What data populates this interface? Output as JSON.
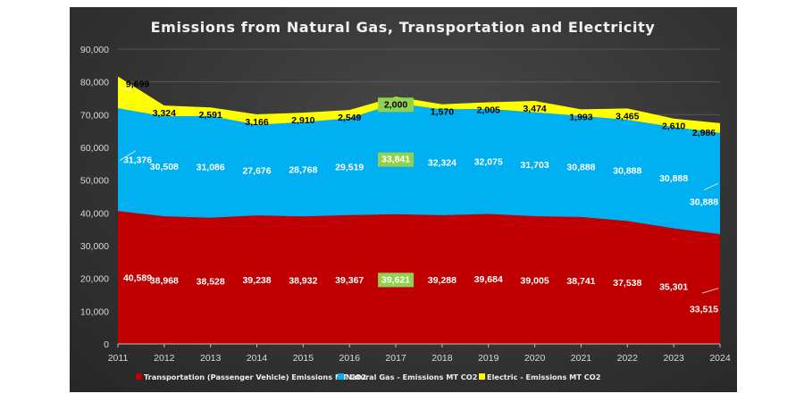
{
  "chart_data": {
    "type": "area",
    "stacked": true,
    "title": "Emissions from Natural Gas, Transportation and Electricity",
    "xlabel": "",
    "ylabel": "",
    "categories": [
      "2011",
      "2012",
      "2013",
      "2014",
      "2015",
      "2016",
      "2017",
      "2018",
      "2019",
      "2020",
      "2021",
      "2022",
      "2023",
      "2024"
    ],
    "ylim": [
      0,
      90000
    ],
    "yticks": [
      0,
      10000,
      20000,
      30000,
      40000,
      50000,
      60000,
      70000,
      80000,
      90000
    ],
    "ytick_labels": [
      "0",
      "10,000",
      "20,000",
      "30,000",
      "40,000",
      "50,000",
      "60,000",
      "70,000",
      "80,000",
      "90,000"
    ],
    "grid": true,
    "legend_position": "bottom",
    "series": [
      {
        "name": "Transportation (Passenger Vehicle) Emissions MT CO2",
        "color": "#C00000",
        "label_color": "#ffffff",
        "values": [
          40589,
          38968,
          38528,
          39238,
          38932,
          39367,
          39621,
          39288,
          39684,
          39005,
          38741,
          37538,
          35301,
          33515
        ],
        "labels": [
          "40,589",
          "38,968",
          "38,528",
          "39,238",
          "38,932",
          "39,367",
          "39,621",
          "39,288",
          "39,684",
          "39,005",
          "38,741",
          "37,538",
          "35,301",
          "33,515"
        ]
      },
      {
        "name": "Natural Gas - Emissions MT CO2",
        "color": "#00B0F0",
        "label_color": "#ffffff",
        "values": [
          31376,
          30508,
          31086,
          27676,
          28768,
          29519,
          33841,
          32324,
          32075,
          31703,
          30888,
          30888,
          30888,
          30888
        ],
        "labels": [
          "31,376",
          "30,508",
          "31,086",
          "27,676",
          "28,768",
          "29,519",
          "33,841",
          "32,324",
          "32,075",
          "31,703",
          "30,888",
          "30,888",
          "30,888",
          "30,888"
        ]
      },
      {
        "name": "Electric - Emissions MT CO2",
        "color": "#FFFF00",
        "label_color": "#000000",
        "values": [
          9699,
          3324,
          2591,
          3166,
          2910,
          2549,
          2000,
          1570,
          2005,
          3474,
          1993,
          3465,
          2610,
          2986
        ],
        "labels": [
          "9,699",
          "3,324",
          "2,591",
          "3,166",
          "2,910",
          "2,549",
          "2,000",
          "1,570",
          "2,005",
          "3,474",
          "1,993",
          "3,465",
          "2,610",
          "2,986"
        ]
      }
    ],
    "highlighted_category": "2017",
    "highlight_color": "#92D050"
  }
}
